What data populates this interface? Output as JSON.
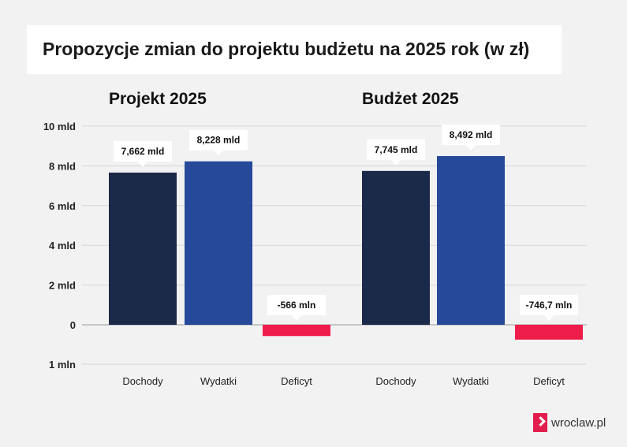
{
  "title": "Propozycje zmian do projektu budżetu na 2025 rok (w zł)",
  "logo_text": "wroclaw.pl",
  "chart_data": {
    "type": "bar",
    "title": "Propozycje zmian do projektu budżetu na 2025 rok (w zł)",
    "ylim": [
      -1,
      10
    ],
    "y_ticks": [
      {
        "value": 10,
        "label": "10 mld"
      },
      {
        "value": 8,
        "label": "8 mld"
      },
      {
        "value": 6,
        "label": "6 mld"
      },
      {
        "value": 4,
        "label": "4 mld"
      },
      {
        "value": 2,
        "label": "2 mld"
      },
      {
        "value": 0,
        "label": "0"
      },
      {
        "value": -1,
        "label": "1 mln"
      }
    ],
    "grid": true,
    "groups": [
      {
        "name": "Projekt 2025",
        "categories": [
          "Dochody",
          "Wydatki",
          "Deficyt"
        ],
        "values": [
          7.662,
          8.228,
          -0.566
        ],
        "labels": [
          "7,662 mld",
          "8,228 mld",
          "-566 mln"
        ],
        "colors": [
          "#1c2a4a",
          "#264a99",
          "#ee1d4a"
        ]
      },
      {
        "name": "Budżet 2025",
        "categories": [
          "Dochody",
          "Wydatki",
          "Deficyt"
        ],
        "values": [
          7.745,
          8.492,
          -0.7467
        ],
        "labels": [
          "7,745 mld",
          "8,492 mld",
          "-746,7 mln"
        ],
        "colors": [
          "#1c2a4a",
          "#264a99",
          "#ee1d4a"
        ]
      }
    ]
  }
}
